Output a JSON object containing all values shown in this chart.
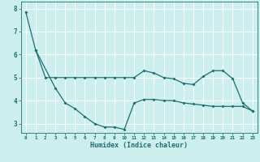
{
  "xlabel": "Humidex (Indice chaleur)",
  "background_color": "#cceeed",
  "grid_color": "#ffffff",
  "line_color": "#1a7070",
  "xlim": [
    -0.5,
    23.5
  ],
  "ylim": [
    2.6,
    8.3
  ],
  "xticks": [
    0,
    1,
    2,
    3,
    4,
    5,
    6,
    7,
    8,
    9,
    10,
    11,
    12,
    13,
    14,
    15,
    16,
    17,
    18,
    19,
    20,
    21,
    22,
    23
  ],
  "yticks": [
    3,
    4,
    5,
    6,
    7,
    8
  ],
  "line1_x": [
    0,
    1,
    2,
    3,
    4,
    5,
    6,
    7,
    8,
    9,
    10,
    11,
    12,
    13,
    14,
    15,
    16,
    17,
    18,
    19,
    20,
    21,
    22,
    23
  ],
  "line1_y": [
    7.85,
    6.2,
    5.0,
    5.0,
    5.0,
    5.0,
    5.0,
    5.0,
    5.0,
    5.0,
    5.0,
    5.0,
    5.3,
    5.2,
    5.0,
    4.95,
    4.75,
    4.7,
    5.05,
    5.3,
    5.3,
    4.95,
    3.9,
    3.55
  ],
  "line2_x": [
    1,
    3,
    4,
    5,
    6,
    7,
    8,
    9,
    10,
    11,
    12,
    13,
    14,
    15,
    16,
    17,
    18,
    19,
    20,
    21,
    22,
    23
  ],
  "line2_y": [
    6.2,
    4.55,
    3.9,
    3.65,
    3.3,
    3.0,
    2.85,
    2.85,
    2.75,
    3.9,
    4.05,
    4.05,
    4.0,
    4.0,
    3.9,
    3.85,
    3.8,
    3.75,
    3.75,
    3.75,
    3.75,
    3.55
  ]
}
